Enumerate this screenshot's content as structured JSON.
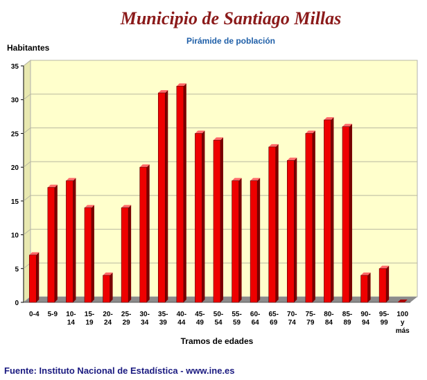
{
  "title": "Municipio de Santiago Millas",
  "subtitle": "Pirámide de población",
  "source": "Fuente: Instituto Nacional de Estadística - www.ine.es",
  "chart_data": {
    "type": "bar",
    "ylabel": "Habitantes",
    "xlabel": "Tramos de edades",
    "ylim": [
      0,
      35
    ],
    "yticks": [
      0,
      5,
      10,
      15,
      20,
      25,
      30,
      35
    ],
    "grid": true,
    "colors": {
      "bar": "#ee0000",
      "plot_bg": "#ffffcc",
      "floor": "#8c8c8c"
    },
    "categories": [
      "0-4",
      "5-9",
      "10-14",
      "15-19",
      "20-24",
      "25-29",
      "30-34",
      "35-39",
      "40-44",
      "45-49",
      "50-54",
      "55-59",
      "60-64",
      "65-69",
      "70-74",
      "75-79",
      "80-84",
      "85-89",
      "90-94",
      "95-99",
      "100 y más"
    ],
    "values": [
      7,
      17,
      18,
      14,
      4,
      14,
      20,
      31,
      32,
      25,
      24,
      18,
      18,
      23,
      21,
      25,
      27,
      26,
      4,
      5,
      0
    ]
  }
}
